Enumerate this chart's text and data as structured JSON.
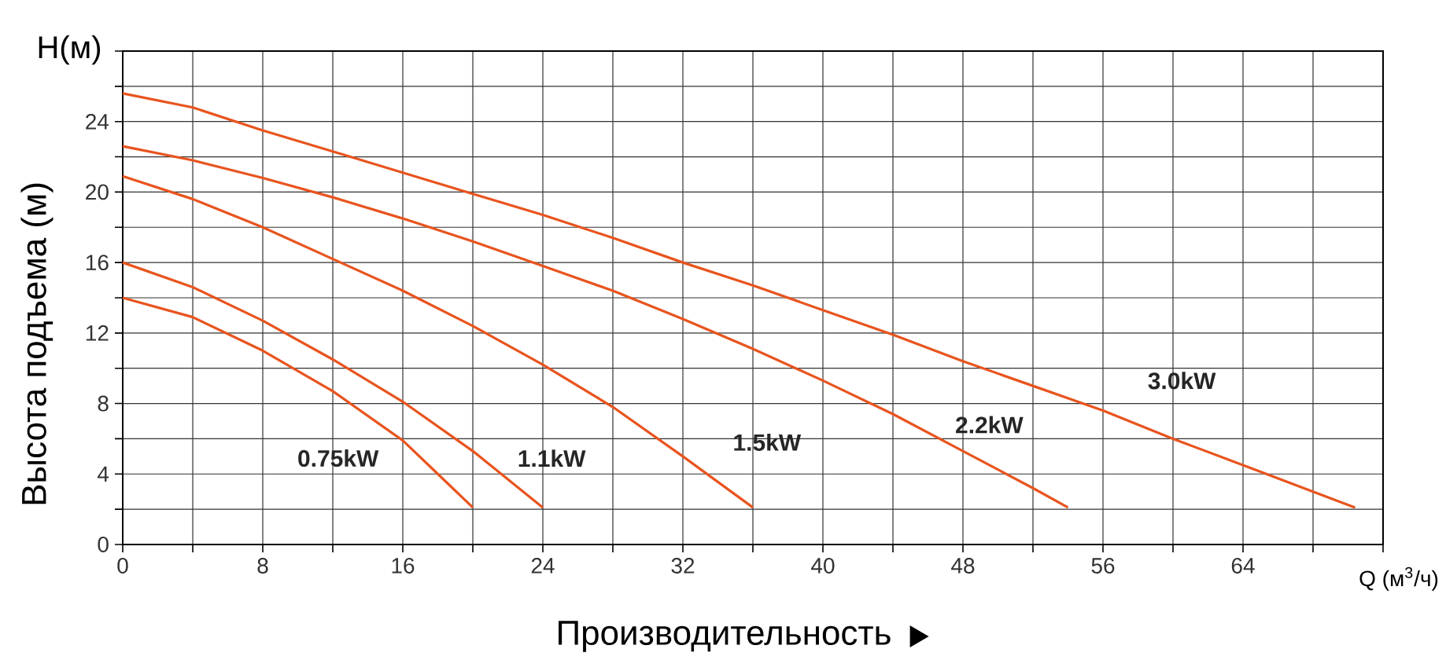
{
  "chart_data": {
    "type": "line",
    "xlabel": "Производительность",
    "ylabel": "Высота подъема (м)",
    "annotations": [
      "H(м)",
      "Q (м$^{3}$/ч)"
    ],
    "xlim": [
      0,
      72
    ],
    "ylim": [
      0,
      28
    ],
    "xticks": [
      0,
      {
        "value": 4,
        "label": null
      },
      8,
      {
        "value": 12,
        "label": null
      },
      16,
      {
        "value": 20,
        "label": null
      },
      24,
      {
        "value": 28,
        "label": null
      },
      32,
      {
        "value": 36,
        "label": null
      },
      40,
      {
        "value": 44,
        "label": null
      },
      48,
      {
        "value": 52,
        "label": null
      },
      56,
      {
        "value": 60,
        "label": null
      },
      64,
      {
        "value": 68,
        "label": null
      },
      {
        "value": 72,
        "label": null
      }
    ],
    "yticks": [
      0,
      {
        "value": 2,
        "label": null
      },
      4,
      {
        "value": 6,
        "label": null
      },
      8,
      {
        "value": 10,
        "label": null
      },
      12,
      {
        "value": 14,
        "label": null
      },
      16,
      {
        "value": 18,
        "label": null
      },
      20,
      {
        "value": 22,
        "label": null
      },
      24,
      {
        "value": 26,
        "label": null
      },
      {
        "value": 28,
        "label": null
      }
    ],
    "grid": true,
    "marker": "none",
    "line_style": "solid",
    "legend": false,
    "series": [
      {
        "name": "0.75kW",
        "color": "#e8541e",
        "x": [
          0,
          4,
          8,
          12,
          16,
          18,
          20
        ],
        "values": [
          14,
          12.9,
          11,
          8.7,
          5.9,
          4,
          2.1
        ]
      },
      {
        "name": "1.1kW",
        "color": "#e8541e",
        "x": [
          0,
          4,
          8,
          12,
          16,
          20,
          22,
          24
        ],
        "values": [
          16,
          14.6,
          12.7,
          10.5,
          8.1,
          5.3,
          3.7,
          2.1
        ]
      },
      {
        "name": "1.5kW",
        "color": "#e8541e",
        "x": [
          0,
          4,
          8,
          12,
          16,
          20,
          24,
          28,
          32,
          36
        ],
        "values": [
          20.9,
          19.6,
          18,
          16.2,
          14.4,
          12.4,
          10.2,
          7.8,
          5,
          2.1
        ]
      },
      {
        "name": "2.2kW",
        "color": "#e8541e",
        "x": [
          0,
          4,
          8,
          12,
          16,
          20,
          24,
          28,
          32,
          36,
          40,
          44,
          48,
          52,
          54
        ],
        "values": [
          22.6,
          21.8,
          20.8,
          19.7,
          18.5,
          17.2,
          15.8,
          14.4,
          12.8,
          11.1,
          9.3,
          7.4,
          5.3,
          3.2,
          2.1
        ]
      },
      {
        "name": "3.0kW",
        "color": "#e8541e",
        "x": [
          0,
          4,
          8,
          12,
          16,
          20,
          24,
          28,
          32,
          36,
          40,
          44,
          48,
          52,
          56,
          60,
          64,
          68,
          70.4
        ],
        "values": [
          25.6,
          24.8,
          23.5,
          22.3,
          21.1,
          19.9,
          18.7,
          17.4,
          16,
          14.7,
          13.3,
          11.9,
          10.4,
          9,
          7.6,
          6,
          4.5,
          3,
          2.1
        ]
      }
    ]
  }
}
